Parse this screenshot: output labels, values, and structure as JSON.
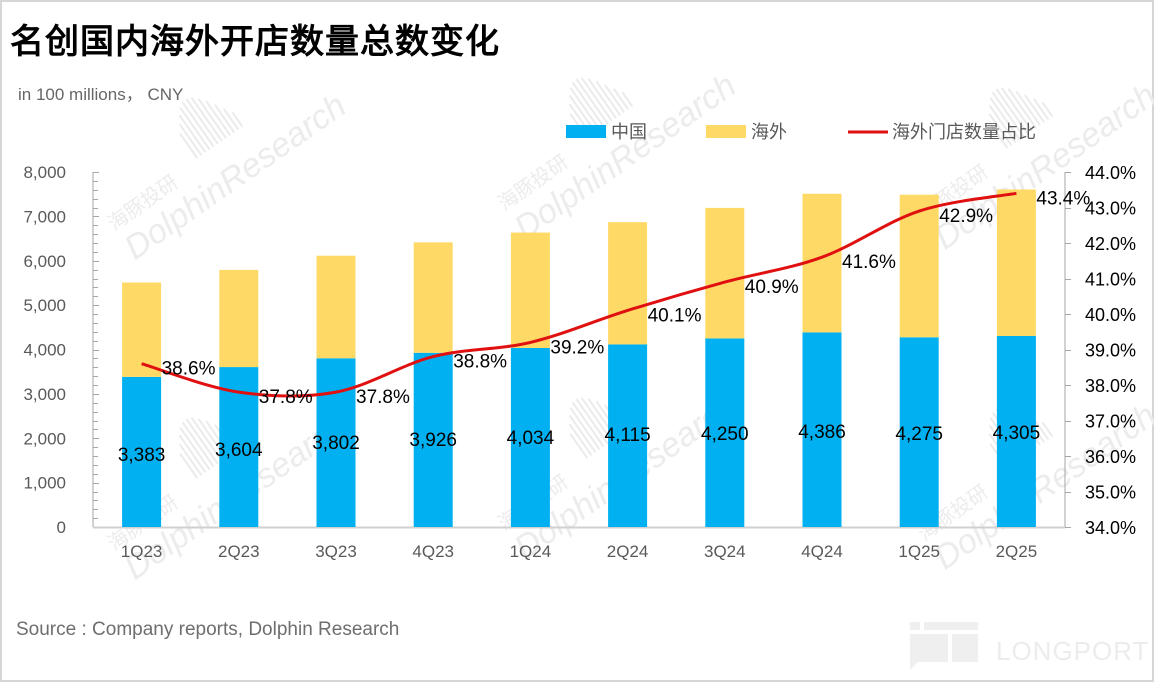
{
  "title": "名创国内海外开店数量总数变化",
  "unit_label": "in 100 millions， CNY",
  "source": "Source : Company reports, Dolphin Research",
  "watermark": {
    "cn": "海豚投研",
    "en": "DolphinResearch",
    "logo": "LONGPORT"
  },
  "colors": {
    "china": "#00B0F0",
    "overseas": "#FFD966",
    "ratio_line": "#E01010",
    "axis": "#a6a6a6",
    "tick_text": "#595959"
  },
  "chart_data": {
    "type": "bar",
    "stacked": true,
    "title": "名创国内海外开店数量总数变化",
    "categories": [
      "1Q23",
      "2Q23",
      "3Q23",
      "4Q23",
      "1Q24",
      "2Q24",
      "3Q24",
      "4Q24",
      "1Q25",
      "2Q25"
    ],
    "series": [
      {
        "name": "中国",
        "type": "bar",
        "axis": "left",
        "values": [
          3383,
          3604,
          3802,
          3926,
          4034,
          4115,
          4250,
          4386,
          4275,
          4305
        ],
        "labels": [
          "3,383",
          "3,604",
          "3,802",
          "3,926",
          "4,034",
          "4,115",
          "4,250",
          "4,386",
          "4,275",
          "4,305"
        ]
      },
      {
        "name": "海外",
        "type": "bar",
        "axis": "left",
        "values": [
          2127,
          2190,
          2311,
          2489,
          2601,
          2755,
          2941,
          3124,
          3212,
          3301
        ]
      },
      {
        "name": "海外门店数量占比",
        "type": "line",
        "axis": "right",
        "values": [
          38.6,
          37.8,
          37.8,
          38.8,
          39.2,
          40.1,
          40.9,
          41.6,
          42.9,
          43.4
        ],
        "labels": [
          "38.6%",
          "37.8%",
          "37.8%",
          "38.8%",
          "39.2%",
          "40.1%",
          "40.9%",
          "41.6%",
          "42.9%",
          "43.4%"
        ]
      }
    ],
    "left_axis": {
      "ylim": [
        0,
        8000
      ],
      "ticks": [
        0,
        1000,
        2000,
        3000,
        4000,
        5000,
        6000,
        7000,
        8000
      ],
      "tick_labels": [
        "0",
        "1,000",
        "2,000",
        "3,000",
        "4,000",
        "5,000",
        "6,000",
        "7,000",
        "8,000"
      ]
    },
    "right_axis": {
      "ylim": [
        34.0,
        44.0
      ],
      "ticks": [
        34,
        35,
        36,
        37,
        38,
        39,
        40,
        41,
        42,
        43,
        44
      ],
      "tick_labels": [
        "34.0%",
        "35.0%",
        "36.0%",
        "37.0%",
        "38.0%",
        "39.0%",
        "40.0%",
        "41.0%",
        "42.0%",
        "43.0%",
        "44.0%"
      ]
    },
    "xlabel": "",
    "ylabel": "",
    "legend": {
      "position": "top-right",
      "items": [
        "中国",
        "海外",
        "海外门店数量占比"
      ]
    },
    "grid": false
  }
}
